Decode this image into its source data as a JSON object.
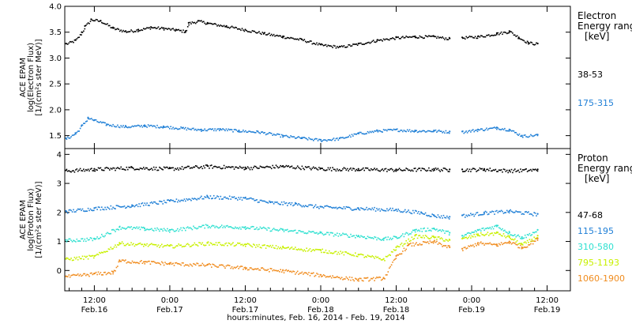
{
  "x_axis": {
    "title": "hours:minutes, Feb. 16, 2014 - Feb. 19, 2014",
    "ticks": [
      {
        "t": 12,
        "time": "12:00",
        "date": "Feb.16"
      },
      {
        "t": 24,
        "time": "0:00",
        "date": "Feb.17"
      },
      {
        "t": 36,
        "time": "12:00",
        "date": "Feb.17"
      },
      {
        "t": 48,
        "time": "0:00",
        "date": "Feb.18"
      },
      {
        "t": 60,
        "time": "12:00",
        "date": "Feb.18"
      },
      {
        "t": 72,
        "time": "0:00",
        "date": "Feb.19"
      },
      {
        "t": 84,
        "time": "12:00",
        "date": "Feb.19"
      }
    ],
    "range_hours_from_feb16_0000": [
      7.3,
      87.7
    ]
  },
  "chart_data": [
    {
      "type": "scatter",
      "panel": "electron",
      "ylabel_lines": [
        "ACE EPAM",
        "log(Electron Flux)",
        "[1/(cm²s ster MeV)]"
      ],
      "ylim": [
        1.25,
        4.0
      ],
      "yticks": [
        "1.5",
        "2.0",
        "2.5",
        "3.0",
        "3.5",
        "4.0"
      ],
      "ytick_values": [
        1.5,
        2.0,
        2.5,
        3.0,
        3.5,
        4.0
      ],
      "legend_title_lines": [
        "Electron",
        "Energy range",
        "[keV]"
      ],
      "series": [
        {
          "name": "38-53",
          "color": "#000000",
          "points": [
            [
              7.5,
              3.28
            ],
            [
              9,
              3.35
            ],
            [
              10,
              3.5
            ],
            [
              10.5,
              3.62
            ],
            [
              11.5,
              3.75
            ],
            [
              13,
              3.72
            ],
            [
              15,
              3.58
            ],
            [
              17,
              3.52
            ],
            [
              19,
              3.55
            ],
            [
              21,
              3.6
            ],
            [
              23,
              3.58
            ],
            [
              25,
              3.55
            ],
            [
              26.5,
              3.52
            ],
            [
              27,
              3.68
            ],
            [
              28.5,
              3.72
            ],
            [
              30,
              3.68
            ],
            [
              33,
              3.62
            ],
            [
              36,
              3.55
            ],
            [
              39,
              3.48
            ],
            [
              42,
              3.42
            ],
            [
              45,
              3.36
            ],
            [
              48,
              3.26
            ],
            [
              51,
              3.22
            ],
            [
              54,
              3.28
            ],
            [
              57,
              3.35
            ],
            [
              60,
              3.4
            ],
            [
              63,
              3.42
            ],
            [
              66,
              3.42
            ],
            [
              68.5,
              3.38
            ],
            [
              69,
              null
            ],
            [
              70.5,
              3.4
            ],
            [
              73,
              3.42
            ],
            [
              76,
              3.48
            ],
            [
              78,
              3.52
            ],
            [
              79.5,
              3.4
            ],
            [
              81,
              3.3
            ],
            [
              82.5,
              3.28
            ]
          ]
        },
        {
          "name": "175-315",
          "color": "#1f7fd6",
          "points": [
            [
              7.5,
              1.45
            ],
            [
              9,
              1.55
            ],
            [
              10,
              1.7
            ],
            [
              11,
              1.85
            ],
            [
              12,
              1.8
            ],
            [
              14,
              1.72
            ],
            [
              17,
              1.68
            ],
            [
              20,
              1.7
            ],
            [
              23,
              1.68
            ],
            [
              26,
              1.65
            ],
            [
              29,
              1.62
            ],
            [
              32,
              1.63
            ],
            [
              35,
              1.6
            ],
            [
              38,
              1.58
            ],
            [
              42,
              1.5
            ],
            [
              45,
              1.46
            ],
            [
              48,
              1.42
            ],
            [
              51,
              1.45
            ],
            [
              54,
              1.55
            ],
            [
              57,
              1.6
            ],
            [
              60,
              1.62
            ],
            [
              63,
              1.6
            ],
            [
              66,
              1.6
            ],
            [
              68.5,
              1.58
            ],
            [
              69,
              null
            ],
            [
              70.5,
              1.58
            ],
            [
              73,
              1.62
            ],
            [
              76,
              1.66
            ],
            [
              78,
              1.62
            ],
            [
              80,
              1.5
            ],
            [
              82.5,
              1.52
            ]
          ]
        }
      ]
    },
    {
      "type": "scatter",
      "panel": "proton",
      "ylabel_lines": [
        "ACE EPAM",
        "log(Proton Flux)",
        "[1/(cm²s ster MeV)]"
      ],
      "ylim": [
        -0.7,
        4.2
      ],
      "yticks": [
        "0",
        "1",
        "2",
        "3",
        "4"
      ],
      "ytick_values": [
        0,
        1,
        2,
        3,
        4
      ],
      "legend_title_lines": [
        "Proton",
        "Energy range",
        "[keV]"
      ],
      "series": [
        {
          "name": "47-68",
          "color": "#000000",
          "points": [
            [
              7.5,
              3.45
            ],
            [
              12,
              3.5
            ],
            [
              18,
              3.55
            ],
            [
              24,
              3.52
            ],
            [
              30,
              3.6
            ],
            [
              36,
              3.55
            ],
            [
              42,
              3.6
            ],
            [
              48,
              3.52
            ],
            [
              54,
              3.5
            ],
            [
              60,
              3.48
            ],
            [
              66,
              3.5
            ],
            [
              68.5,
              3.48
            ],
            [
              69,
              null
            ],
            [
              70.5,
              3.48
            ],
            [
              74,
              3.5
            ],
            [
              78,
              3.45
            ],
            [
              82.5,
              3.48
            ]
          ]
        },
        {
          "name": "115-195",
          "color": "#1f7fd6",
          "points": [
            [
              7.5,
              2.05
            ],
            [
              12,
              2.15
            ],
            [
              18,
              2.25
            ],
            [
              24,
              2.4
            ],
            [
              30,
              2.55
            ],
            [
              36,
              2.5
            ],
            [
              40,
              2.35
            ],
            [
              44,
              2.3
            ],
            [
              48,
              2.2
            ],
            [
              54,
              2.15
            ],
            [
              60,
              2.1
            ],
            [
              64,
              2.0
            ],
            [
              66,
              1.9
            ],
            [
              68.5,
              1.85
            ],
            [
              69,
              null
            ],
            [
              70.5,
              1.9
            ],
            [
              74,
              2.0
            ],
            [
              78,
              2.05
            ],
            [
              82.5,
              1.95
            ]
          ]
        },
        {
          "name": "310-580",
          "color": "#2ee0d0",
          "points": [
            [
              7.5,
              1.05
            ],
            [
              12,
              1.1
            ],
            [
              16,
              1.5
            ],
            [
              20,
              1.45
            ],
            [
              24,
              1.4
            ],
            [
              30,
              1.55
            ],
            [
              36,
              1.5
            ],
            [
              42,
              1.4
            ],
            [
              48,
              1.3
            ],
            [
              54,
              1.2
            ],
            [
              58,
              1.1
            ],
            [
              60,
              1.15
            ],
            [
              63,
              1.4
            ],
            [
              66,
              1.45
            ],
            [
              68.5,
              1.3
            ],
            [
              69,
              null
            ],
            [
              70.5,
              1.2
            ],
            [
              73,
              1.4
            ],
            [
              76,
              1.55
            ],
            [
              78,
              1.3
            ],
            [
              80,
              1.15
            ],
            [
              82.5,
              1.4
            ]
          ]
        },
        {
          "name": "795-1193",
          "color": "#c8f000",
          "points": [
            [
              7.5,
              0.4
            ],
            [
              12,
              0.5
            ],
            [
              16,
              0.95
            ],
            [
              20,
              0.9
            ],
            [
              24,
              0.85
            ],
            [
              30,
              0.95
            ],
            [
              36,
              0.9
            ],
            [
              42,
              0.8
            ],
            [
              48,
              0.7
            ],
            [
              54,
              0.55
            ],
            [
              58,
              0.4
            ],
            [
              60,
              0.8
            ],
            [
              63,
              1.2
            ],
            [
              66,
              1.15
            ],
            [
              68.5,
              1.05
            ],
            [
              69,
              null
            ],
            [
              70.5,
              1.1
            ],
            [
              73,
              1.25
            ],
            [
              76,
              1.3
            ],
            [
              78,
              1.15
            ],
            [
              80,
              0.9
            ],
            [
              82.5,
              1.2
            ]
          ]
        },
        {
          "name": "1060-1900",
          "color": "#f08c1e",
          "points": [
            [
              7.5,
              -0.2
            ],
            [
              12,
              -0.1
            ],
            [
              15,
              -0.05
            ],
            [
              16,
              0.35
            ],
            [
              20,
              0.3
            ],
            [
              24,
              0.25
            ],
            [
              30,
              0.2
            ],
            [
              36,
              0.1
            ],
            [
              42,
              0.0
            ],
            [
              48,
              -0.15
            ],
            [
              54,
              -0.3
            ],
            [
              58,
              -0.25
            ],
            [
              60,
              0.5
            ],
            [
              62,
              0.9
            ],
            [
              66,
              1.0
            ],
            [
              68.5,
              0.8
            ],
            [
              69,
              null
            ],
            [
              70.5,
              0.75
            ],
            [
              73,
              0.95
            ],
            [
              76,
              0.9
            ],
            [
              78,
              1.0
            ],
            [
              80,
              0.8
            ],
            [
              82.5,
              1.1
            ]
          ]
        }
      ]
    }
  ]
}
